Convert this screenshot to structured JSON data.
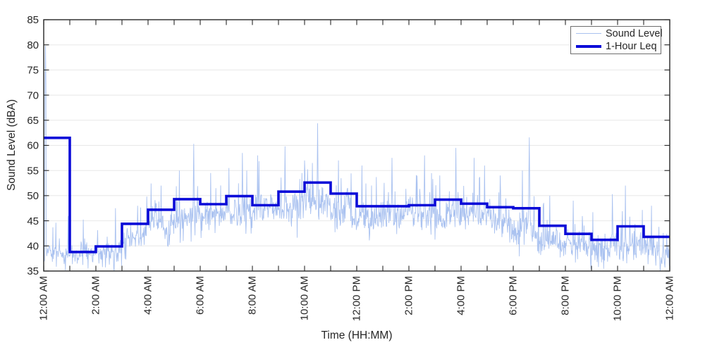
{
  "chart_data": {
    "type": "line",
    "title": "",
    "xlabel": "Time (HH:MM)",
    "ylabel": "Sound Level (dBA)",
    "xlim_hours": [
      0,
      24
    ],
    "ylim": [
      35,
      85
    ],
    "grid": "horizontal-only",
    "y_ticks": [
      35,
      40,
      45,
      50,
      55,
      60,
      65,
      70,
      75,
      80,
      85
    ],
    "y_gridlines": [
      40,
      45,
      50,
      55,
      60,
      65,
      70,
      75,
      80
    ],
    "x_major_ticks_hours": [
      0,
      2,
      4,
      6,
      8,
      10,
      12,
      14,
      16,
      18,
      20,
      22,
      24
    ],
    "x_tick_labels": [
      "12:00 AM",
      "2:00 AM",
      "4:00 AM",
      "6:00 AM",
      "8:00 AM",
      "10:00 AM",
      "12:00 PM",
      "2:00 PM",
      "4:00 PM",
      "6:00 PM",
      "8:00 PM",
      "10:00 PM",
      "12:00 AM"
    ],
    "x_minor_tick_interval_hours": 1,
    "colors": {
      "sound_level": "#aac2f0",
      "leq": "#0b0bd8",
      "grid": "#e8e8e8",
      "axis": "#262626",
      "legend_border": "#6e6e6e",
      "background": "#ffffff"
    },
    "legend": {
      "position": "top-right",
      "entries": [
        {
          "label": "Sound Level",
          "color": "#aac2f0",
          "line_width": 1.5
        },
        {
          "label": "1-Hour Leq",
          "color": "#0b0bd8",
          "line_width": 4
        }
      ]
    },
    "series": [
      {
        "name": "Sound Level",
        "render": "noisy-line",
        "sample_interval_minutes": 1,
        "hourly_baseline_dba": [
          37.5,
          37.8,
          38.3,
          41.0,
          44.0,
          46.0,
          46.3,
          46.8,
          46.3,
          47.3,
          49.3,
          47.5,
          46.3,
          45.8,
          45.8,
          46.3,
          45.8,
          45.3,
          44.3,
          41.3,
          40.3,
          39.3,
          40.3,
          39.0
        ],
        "hourly_variability_dba": [
          1.2,
          1.2,
          1.6,
          2.0,
          2.2,
          2.3,
          2.3,
          2.4,
          2.4,
          2.4,
          2.4,
          2.4,
          2.3,
          2.3,
          2.3,
          2.3,
          2.3,
          2.3,
          2.4,
          2.2,
          2.2,
          2.0,
          2.3,
          2.0
        ],
        "spikes_hour_dba": [
          [
            0.07,
            79.8
          ],
          [
            0.35,
            43.7
          ],
          [
            2.75,
            47.5
          ],
          [
            3.6,
            48.0
          ],
          [
            4.5,
            52.0
          ],
          [
            5.2,
            55.0
          ],
          [
            5.75,
            60.3
          ],
          [
            6.4,
            54.5
          ],
          [
            7.1,
            55.5
          ],
          [
            7.62,
            58.5
          ],
          [
            8.2,
            58.0
          ],
          [
            9.25,
            59.8
          ],
          [
            10.0,
            57.0
          ],
          [
            10.3,
            56.5
          ],
          [
            10.5,
            64.4
          ],
          [
            11.3,
            57.0
          ],
          [
            12.2,
            56.0
          ],
          [
            13.35,
            57.5
          ],
          [
            14.6,
            58.0
          ],
          [
            15.8,
            59.5
          ],
          [
            16.5,
            57.5
          ],
          [
            16.9,
            56.0
          ],
          [
            17.5,
            54.0
          ],
          [
            18.35,
            55.0
          ],
          [
            18.62,
            61.6
          ],
          [
            19.4,
            50.0
          ],
          [
            20.3,
            49.0
          ],
          [
            21.8,
            50.3
          ],
          [
            22.3,
            52.0
          ],
          [
            23.3,
            48.0
          ]
        ]
      },
      {
        "name": "1-Hour Leq",
        "render": "step",
        "hourly_leq_dba": [
          61.5,
          38.8,
          39.9,
          44.4,
          47.2,
          49.3,
          48.3,
          49.9,
          48.1,
          50.8,
          52.6,
          50.4,
          47.9,
          47.9,
          48.1,
          49.2,
          48.4,
          47.7,
          47.5,
          44.0,
          42.4,
          41.2,
          43.9,
          41.8
        ]
      }
    ]
  }
}
